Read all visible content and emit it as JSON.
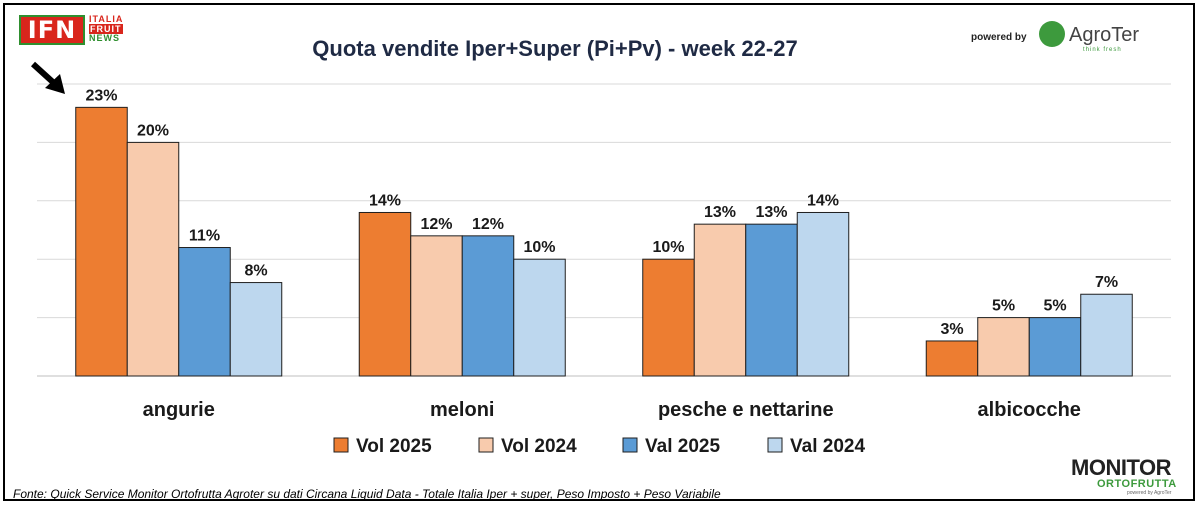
{
  "branding": {
    "ifn_logo": "IFN",
    "ifn_words": [
      "ITALIA",
      "FRUIT",
      "NEWS"
    ],
    "powered_by": "powered by",
    "agroter_name": "AgroTer",
    "agroter_tagline": "think fresh",
    "monitor_big": "MONITOR",
    "monitor_sub": "ORTOFRUTTA",
    "monitor_powered": "powered by AgroTer"
  },
  "source_note": "Fonte: Quick Service Monitor Ortofrutta Agroter su dati Circana Liquid Data - Totale Italia Iper + super, Peso Imposto + Peso Variabile",
  "colors": {
    "Vol 2025": "#ed7d31",
    "Vol 2024": "#f8cbad",
    "Val 2025": "#5b9bd5",
    "Val 2024": "#bdd7ee"
  },
  "chart_data": {
    "type": "bar",
    "title": "Quota vendite Iper+Super (Pi+Pv) - week 22-27",
    "categories": [
      "angurie",
      "meloni",
      "pesche e nettarine",
      "albicocche"
    ],
    "series": [
      {
        "name": "Vol 2025",
        "values": [
          23,
          14,
          10,
          3
        ],
        "labels": [
          "23%",
          "14%",
          "10%",
          "3%"
        ]
      },
      {
        "name": "Vol 2024",
        "values": [
          20,
          12,
          13,
          5
        ],
        "labels": [
          "20%",
          "12%",
          "13%",
          "5%"
        ]
      },
      {
        "name": "Val 2025",
        "values": [
          11,
          12,
          13,
          5
        ],
        "labels": [
          "11%",
          "12%",
          "13%",
          "5%"
        ]
      },
      {
        "name": "Val 2024",
        "values": [
          8,
          10,
          14,
          7
        ],
        "labels": [
          "8%",
          "10%",
          "14%",
          "7%"
        ]
      }
    ],
    "ylim": [
      0,
      25
    ],
    "grid": true,
    "legend": "bottom",
    "annotation": "arrow pointing to angurie Vol 2025"
  }
}
